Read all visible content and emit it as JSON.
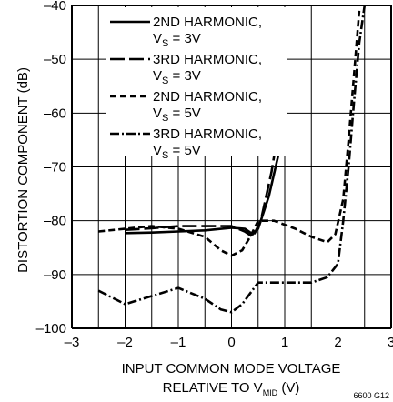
{
  "chart_data": {
    "type": "line",
    "title": "",
    "xlabel_line1": "INPUT COMMON MODE VOLTAGE",
    "xlabel_line2_prefix": "RELATIVE TO V",
    "xlabel_line2_sub": "MID",
    "xlabel_line2_suffix": " (V)",
    "ylabel": "DISTORTION COMPONENT (dB)",
    "xlim": [
      -3,
      3
    ],
    "ylim": [
      -100,
      -40
    ],
    "x_ticks": [
      -3,
      -2,
      -1,
      0,
      1,
      2,
      3
    ],
    "y_ticks": [
      -100,
      -90,
      -80,
      -70,
      -60,
      -50,
      -40
    ],
    "x_tick_labels": [
      "–3",
      "–2",
      "–1",
      "0",
      "1",
      "2",
      "3"
    ],
    "y_tick_labels": [
      "–100",
      "–90",
      "–80",
      "–70",
      "–60",
      "–50",
      "–40"
    ],
    "grid": true,
    "legend_position": "top-left",
    "series": [
      {
        "name": "2ND HARMONIC, VS = 3V",
        "legend_line1": "2ND HARMONIC,",
        "legend_line2_prefix": "V",
        "legend_line2_sub": "S",
        "legend_line2_suffix": " = 3V",
        "style": "solid",
        "x": [
          -2.0,
          -1.5,
          -1.0,
          -0.5,
          0.0,
          0.25,
          0.4,
          0.5,
          0.7,
          0.9,
          1.0
        ],
        "y": [
          -82.3,
          -82.2,
          -82.0,
          -81.8,
          -81.3,
          -81.5,
          -82.5,
          -81.5,
          -75.5,
          -67.0,
          -65.0
        ]
      },
      {
        "name": "3RD HARMONIC, VS = 3V",
        "legend_line1": "3RD HARMONIC,",
        "legend_line2_prefix": "V",
        "legend_line2_sub": "S",
        "legend_line2_suffix": " = 3V",
        "style": "longdash",
        "x": [
          -2.0,
          -1.5,
          -1.0,
          -0.5,
          0.0,
          0.25,
          0.4,
          0.55,
          0.75,
          0.9,
          1.0
        ],
        "y": [
          -81.7,
          -81.4,
          -81.0,
          -81.0,
          -81.0,
          -82.0,
          -83.0,
          -80.0,
          -71.0,
          -62.0,
          -56.5
        ]
      },
      {
        "name": "2ND HARMONIC, VS = 5V",
        "legend_line1": "2ND HARMONIC,",
        "legend_line2_prefix": "V",
        "legend_line2_sub": "S",
        "legend_line2_suffix": " = 5V",
        "style": "dashed",
        "x": [
          -2.5,
          -2.0,
          -1.5,
          -1.0,
          -0.5,
          -0.2,
          0.0,
          0.2,
          0.35,
          0.5,
          0.8,
          1.2,
          1.5,
          1.8,
          1.95,
          2.1,
          2.2,
          2.3,
          2.4
        ],
        "y": [
          -82.0,
          -81.5,
          -81.0,
          -81.5,
          -83.0,
          -85.5,
          -86.5,
          -85.5,
          -83.0,
          -80.0,
          -80.0,
          -81.5,
          -83.0,
          -84.0,
          -82.5,
          -76.0,
          -65.0,
          -53.0,
          -41.0
        ]
      },
      {
        "name": "3RD HARMONIC, VS = 5V",
        "legend_line1": "3RD HARMONIC,",
        "legend_line2_prefix": "V",
        "legend_line2_sub": "S",
        "legend_line2_suffix": " = 5V",
        "style": "dashdot",
        "x": [
          -2.5,
          -2.0,
          -1.5,
          -1.0,
          -0.5,
          -0.2,
          0.0,
          0.2,
          0.5,
          1.0,
          1.5,
          1.8,
          2.0,
          2.1,
          2.2,
          2.3,
          2.4,
          2.5
        ],
        "y": [
          -93.0,
          -95.5,
          -94.0,
          -92.5,
          -94.5,
          -96.5,
          -97.0,
          -95.5,
          -91.5,
          -91.5,
          -91.5,
          -90.5,
          -88.0,
          -80.0,
          -70.0,
          -58.0,
          -47.0,
          -40.0
        ]
      }
    ],
    "footnote": "6600 G12"
  }
}
